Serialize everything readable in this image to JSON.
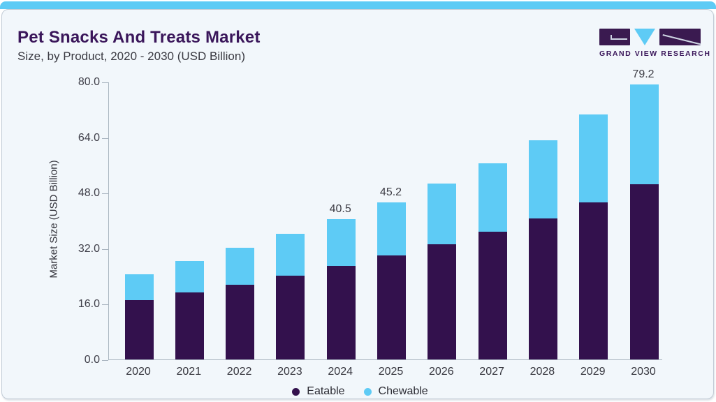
{
  "page": {
    "title": "Pet Snacks And Treats Market",
    "subtitle": "Size, by Product, 2020 - 2030 (USD Billion)",
    "logo_text": "GRAND VIEW RESEARCH"
  },
  "colors": {
    "accent_cyan": "#5ecbf5",
    "brand_purple": "#3a165a",
    "axis_gray": "#a9b5c0",
    "card_background": "#f2f7fb"
  },
  "chart_data": {
    "type": "bar",
    "stacked": true,
    "title": "Pet Snacks And Treats Market Size, by Product, 2020 - 2030 (USD Billion)",
    "categories": [
      "2020",
      "2021",
      "2022",
      "2023",
      "2024",
      "2025",
      "2026",
      "2027",
      "2028",
      "2029",
      "2030"
    ],
    "series": [
      {
        "name": "Eatable",
        "color": "#33114d",
        "values": [
          17.0,
          19.3,
          21.6,
          24.2,
          26.9,
          29.9,
          33.1,
          36.7,
          40.7,
          45.2,
          50.4
        ]
      },
      {
        "name": "Chewable",
        "color": "#5ecbf5",
        "values": [
          7.5,
          9.0,
          10.5,
          12.0,
          13.6,
          15.3,
          17.5,
          19.8,
          22.4,
          25.4,
          28.8
        ]
      }
    ],
    "totals": [
      24.5,
      28.3,
      32.1,
      36.2,
      40.5,
      45.2,
      50.6,
      56.5,
      63.1,
      70.6,
      79.2
    ],
    "value_labels": {
      "2024": "40.5",
      "2025": "45.2",
      "2030": "79.2"
    },
    "xlabel": "",
    "ylabel": "Market Size (USD Billion)",
    "ylim": [
      0,
      80
    ],
    "yticks": [
      "80.0",
      "64.0",
      "48.0",
      "32.0",
      "16.0",
      "0.0"
    ],
    "grid": false,
    "legend_position": "bottom",
    "legend": [
      "Eatable",
      "Chewable"
    ]
  }
}
